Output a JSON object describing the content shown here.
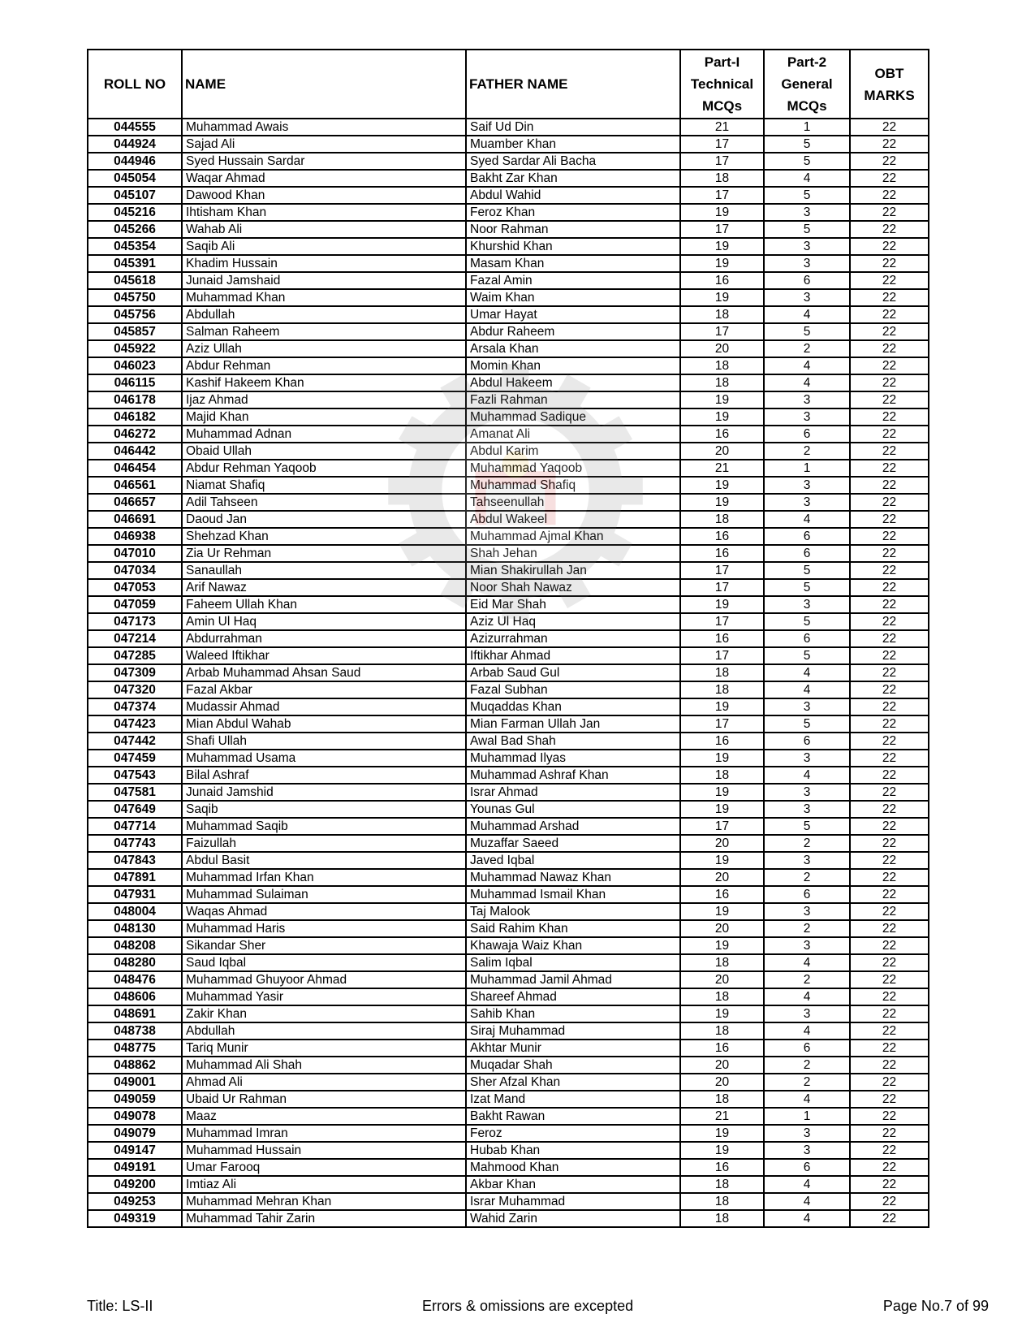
{
  "header": {
    "roll_no": "ROLL NO",
    "name": "NAME",
    "father_name": "FATHER NAME",
    "part1": [
      "Part-I",
      "Technical",
      "MCQs"
    ],
    "part2": [
      "Part-2",
      "General",
      "MCQs"
    ],
    "obt": [
      "OBT",
      "MARKS"
    ]
  },
  "rows": [
    [
      "044555",
      "Muhammad Awais",
      "Saif Ud Din",
      "21",
      "1",
      "22"
    ],
    [
      "044924",
      "Sajad Ali",
      "Muamber Khan",
      "17",
      "5",
      "22"
    ],
    [
      "044946",
      "Syed Hussain Sardar",
      "Syed Sardar Ali Bacha",
      "17",
      "5",
      "22"
    ],
    [
      "045054",
      "Waqar Ahmad",
      "Bakht Zar Khan",
      "18",
      "4",
      "22"
    ],
    [
      "045107",
      "Dawood Khan",
      "Abdul Wahid",
      "17",
      "5",
      "22"
    ],
    [
      "045216",
      "Ihtisham Khan",
      "Feroz Khan",
      "19",
      "3",
      "22"
    ],
    [
      "045266",
      "Wahab Ali",
      "Noor Rahman",
      "17",
      "5",
      "22"
    ],
    [
      "045354",
      "Saqib Ali",
      "Khurshid Khan",
      "19",
      "3",
      "22"
    ],
    [
      "045391",
      "Khadim Hussain",
      "Masam Khan",
      "19",
      "3",
      "22"
    ],
    [
      "045618",
      "Junaid Jamshaid",
      "Fazal Amin",
      "16",
      "6",
      "22"
    ],
    [
      "045750",
      "Muhammad Khan",
      "Waim Khan",
      "19",
      "3",
      "22"
    ],
    [
      "045756",
      "Abdullah",
      "Umar Hayat",
      "18",
      "4",
      "22"
    ],
    [
      "045857",
      "Salman Raheem",
      "Abdur Raheem",
      "17",
      "5",
      "22"
    ],
    [
      "045922",
      "Aziz Ullah",
      "Arsala Khan",
      "20",
      "2",
      "22"
    ],
    [
      "046023",
      "Abdur Rehman",
      "Momin Khan",
      "18",
      "4",
      "22"
    ],
    [
      "046115",
      "Kashif Hakeem Khan",
      "Abdul Hakeem",
      "18",
      "4",
      "22"
    ],
    [
      "046178",
      "Ijaz Ahmad",
      "Fazli Rahman",
      "19",
      "3",
      "22"
    ],
    [
      "046182",
      "Majid Khan",
      "Muhammad Sadique",
      "19",
      "3",
      "22"
    ],
    [
      "046272",
      "Muhammad Adnan",
      "Amanat Ali",
      "16",
      "6",
      "22"
    ],
    [
      "046442",
      "Obaid Ullah",
      "Abdul Karim",
      "20",
      "2",
      "22"
    ],
    [
      "046454",
      "Abdur Rehman Yaqoob",
      "Muhammad Yaqoob",
      "21",
      "1",
      "22"
    ],
    [
      "046561",
      "Niamat Shafiq",
      "Muhammad Shafiq",
      "19",
      "3",
      "22"
    ],
    [
      "046657",
      "Adil Tahseen",
      "Tahseenullah",
      "19",
      "3",
      "22"
    ],
    [
      "046691",
      "Daoud Jan",
      "Abdul Wakeel",
      "18",
      "4",
      "22"
    ],
    [
      "046938",
      "Shehzad Khan",
      "Muhammad Ajmal Khan",
      "16",
      "6",
      "22"
    ],
    [
      "047010",
      "Zia Ur Rehman",
      "Shah Jehan",
      "16",
      "6",
      "22"
    ],
    [
      "047034",
      "Sanaullah",
      "Mian Shakirullah Jan",
      "17",
      "5",
      "22"
    ],
    [
      "047053",
      "Arif Nawaz",
      "Noor Shah Nawaz",
      "17",
      "5",
      "22"
    ],
    [
      "047059",
      "Faheem Ullah Khan",
      "Eid Mar Shah",
      "19",
      "3",
      "22"
    ],
    [
      "047173",
      "Amin Ul Haq",
      "Aziz Ul Haq",
      "17",
      "5",
      "22"
    ],
    [
      "047214",
      "Abdurrahman",
      "Azizurrahman",
      "16",
      "6",
      "22"
    ],
    [
      "047285",
      "Waleed Iftikhar",
      "Iftikhar Ahmad",
      "17",
      "5",
      "22"
    ],
    [
      "047309",
      "Arbab Muhammad Ahsan Saud",
      "Arbab Saud Gul",
      "18",
      "4",
      "22"
    ],
    [
      "047320",
      "Fazal Akbar",
      "Fazal Subhan",
      "18",
      "4",
      "22"
    ],
    [
      "047374",
      "Mudassir Ahmad",
      "Muqaddas Khan",
      "19",
      "3",
      "22"
    ],
    [
      "047423",
      "Mian Abdul Wahab",
      "Mian Farman Ullah Jan",
      "17",
      "5",
      "22"
    ],
    [
      "047442",
      "Shafi Ullah",
      "Awal Bad Shah",
      "16",
      "6",
      "22"
    ],
    [
      "047459",
      "Muhammad Usama",
      "Muhammad Ilyas",
      "19",
      "3",
      "22"
    ],
    [
      "047543",
      "Bilal Ashraf",
      "Muhammad Ashraf Khan",
      "18",
      "4",
      "22"
    ],
    [
      "047581",
      "Junaid Jamshid",
      "Israr Ahmad",
      "19",
      "3",
      "22"
    ],
    [
      "047649",
      "Saqib",
      "Younas Gul",
      "19",
      "3",
      "22"
    ],
    [
      "047714",
      "Muhammad Saqib",
      "Muhammad Arshad",
      "17",
      "5",
      "22"
    ],
    [
      "047743",
      "Faizullah",
      "Muzaffar Saeed",
      "20",
      "2",
      "22"
    ],
    [
      "047843",
      "Abdul Basit",
      "Javed Iqbal",
      "19",
      "3",
      "22"
    ],
    [
      "047891",
      "Muhammad Irfan Khan",
      "Muhammad Nawaz Khan",
      "20",
      "2",
      "22"
    ],
    [
      "047931",
      "Muhammad Sulaiman",
      "Muhammad Ismail Khan",
      "16",
      "6",
      "22"
    ],
    [
      "048004",
      "Waqas Ahmad",
      "Taj Malook",
      "19",
      "3",
      "22"
    ],
    [
      "048130",
      "Muhammad Haris",
      "Said Rahim Khan",
      "20",
      "2",
      "22"
    ],
    [
      "048208",
      "Sikandar Sher",
      "Khawaja Waiz Khan",
      "19",
      "3",
      "22"
    ],
    [
      "048280",
      "Saud Iqbal",
      "Salim Iqbal",
      "18",
      "4",
      "22"
    ],
    [
      "048476",
      "Muhammad Ghuyoor Ahmad",
      "Muhammad Jamil Ahmad",
      "20",
      "2",
      "22"
    ],
    [
      "048606",
      "Muhammad Yasir",
      "Shareef Ahmad",
      "18",
      "4",
      "22"
    ],
    [
      "048691",
      "Zakir Khan",
      "Sahib Khan",
      "19",
      "3",
      "22"
    ],
    [
      "048738",
      "Abdullah",
      "Siraj Muhammad",
      "18",
      "4",
      "22"
    ],
    [
      "048775",
      "Tariq Munir",
      "Akhtar Munir",
      "16",
      "6",
      "22"
    ],
    [
      "048862",
      "Muhammad Ali Shah",
      "Muqadar Shah",
      "20",
      "2",
      "22"
    ],
    [
      "049001",
      "Ahmad Ali",
      "Sher Afzal Khan",
      "20",
      "2",
      "22"
    ],
    [
      "049059",
      "Ubaid Ur Rahman",
      "Izat Mand",
      "18",
      "4",
      "22"
    ],
    [
      "049078",
      "Maaz",
      "Bakht Rawan",
      "21",
      "1",
      "22"
    ],
    [
      "049079",
      "Muhammad Imran",
      "Feroz",
      "19",
      "3",
      "22"
    ],
    [
      "049147",
      "Muhammad Hussain",
      "Hubab Khan",
      "19",
      "3",
      "22"
    ],
    [
      "049191",
      "Umar Farooq",
      "Mahmood Khan",
      "16",
      "6",
      "22"
    ],
    [
      "049200",
      "Imtiaz Ali",
      "Akbar Khan",
      "18",
      "4",
      "22"
    ],
    [
      "049253",
      "Muhammad Mehran Khan",
      "Israr Muhammad",
      "18",
      "4",
      "22"
    ],
    [
      "049319",
      "Muhammad Tahir Zarin",
      "Wahid Zarin",
      "18",
      "4",
      "22"
    ]
  ],
  "footer": {
    "title": "Title: LS-II",
    "note": "Errors & omissions are excepted",
    "page": "Page No.7 of 99"
  },
  "watermark": {
    "icon": "company-gear-logo-watermark",
    "colors": [
      "#808080",
      "#d04040",
      "#e8c040"
    ]
  }
}
